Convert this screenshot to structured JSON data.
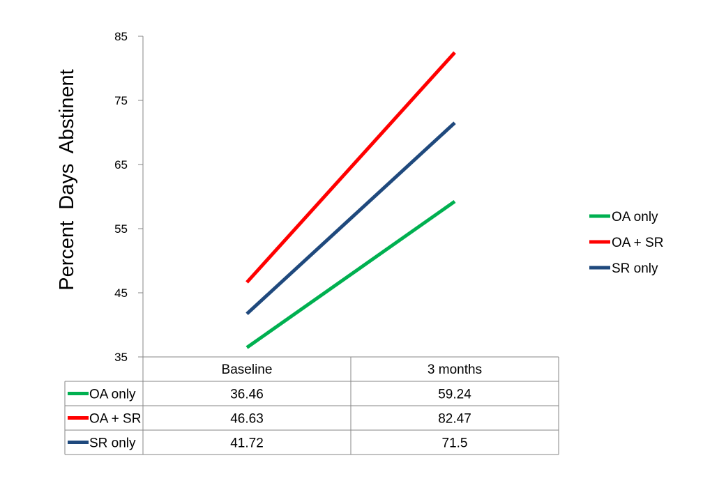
{
  "chart_data": {
    "type": "line",
    "ylabel": "Percent  Days  Abstinent",
    "xlabel": "",
    "categories": [
      "Baseline",
      "3 months"
    ],
    "ylim": [
      35,
      85
    ],
    "yticks": [
      35,
      45,
      55,
      65,
      75,
      85
    ],
    "grid": false,
    "legend_position": "right",
    "data_table": true,
    "series": [
      {
        "name": "OA only",
        "values": [
          36.46,
          59.24
        ],
        "value_labels": [
          "36.46",
          "59.24"
        ],
        "color": "#00b050"
      },
      {
        "name": "OA + SR",
        "values": [
          46.63,
          82.47
        ],
        "value_labels": [
          "46.63",
          "82.47"
        ],
        "color": "#ff0000"
      },
      {
        "name": "SR only",
        "values": [
          41.72,
          71.5
        ],
        "value_labels": [
          "41.72",
          "71.5"
        ],
        "color": "#1f497d"
      }
    ]
  }
}
